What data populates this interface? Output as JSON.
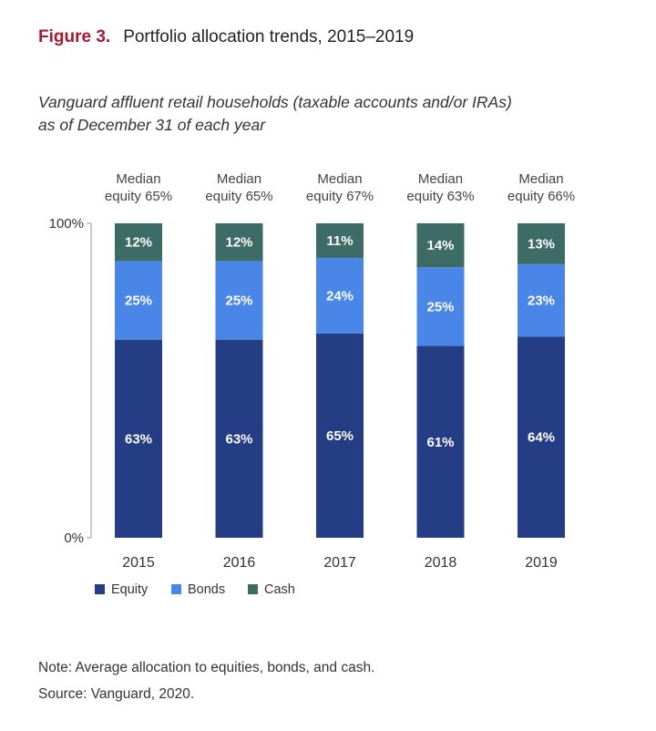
{
  "figure_label": "Figure 3.",
  "figure_title": "Portfolio allocation trends, 2015–2019",
  "subtitle_line1": "Vanguard affluent retail households (taxable accounts and/or IRAs)",
  "subtitle_line2": "as of December 31 of each year",
  "note": "Note: Average allocation to equities, bonds, and cash.",
  "source": "Source: Vanguard, 2020.",
  "colors": {
    "equity": "#253d84",
    "bonds": "#4a86e8",
    "cash": "#3d6b66",
    "axis": "#999999"
  },
  "chart_data": {
    "type": "bar",
    "stacked": true,
    "categories": [
      "2015",
      "2016",
      "2017",
      "2018",
      "2019"
    ],
    "series": [
      {
        "name": "Equity",
        "values": [
          63,
          63,
          65,
          61,
          64
        ]
      },
      {
        "name": "Bonds",
        "values": [
          25,
          25,
          24,
          25,
          23
        ]
      },
      {
        "name": "Cash",
        "values": [
          12,
          12,
          11,
          14,
          13
        ]
      }
    ],
    "data_labels": {
      "Equity": [
        "63%",
        "63%",
        "65%",
        "61%",
        "64%"
      ],
      "Bonds": [
        "25%",
        "25%",
        "24%",
        "25%",
        "23%"
      ],
      "Cash": [
        "12%",
        "12%",
        "11%",
        "14%",
        "13%"
      ]
    },
    "annotations": [
      {
        "line1": "Median",
        "line2": "equity 65%"
      },
      {
        "line1": "Median",
        "line2": "equity 65%"
      },
      {
        "line1": "Median",
        "line2": "equity 67%"
      },
      {
        "line1": "Median",
        "line2": "equity 63%"
      },
      {
        "line1": "Median",
        "line2": "equity 66%"
      }
    ],
    "ytick_labels": [
      "100%",
      "0%"
    ],
    "ylim": [
      0,
      100
    ],
    "grid": false,
    "legend": {
      "placement": "bottom-left",
      "entries": [
        "Equity",
        "Bonds",
        "Cash"
      ]
    }
  }
}
